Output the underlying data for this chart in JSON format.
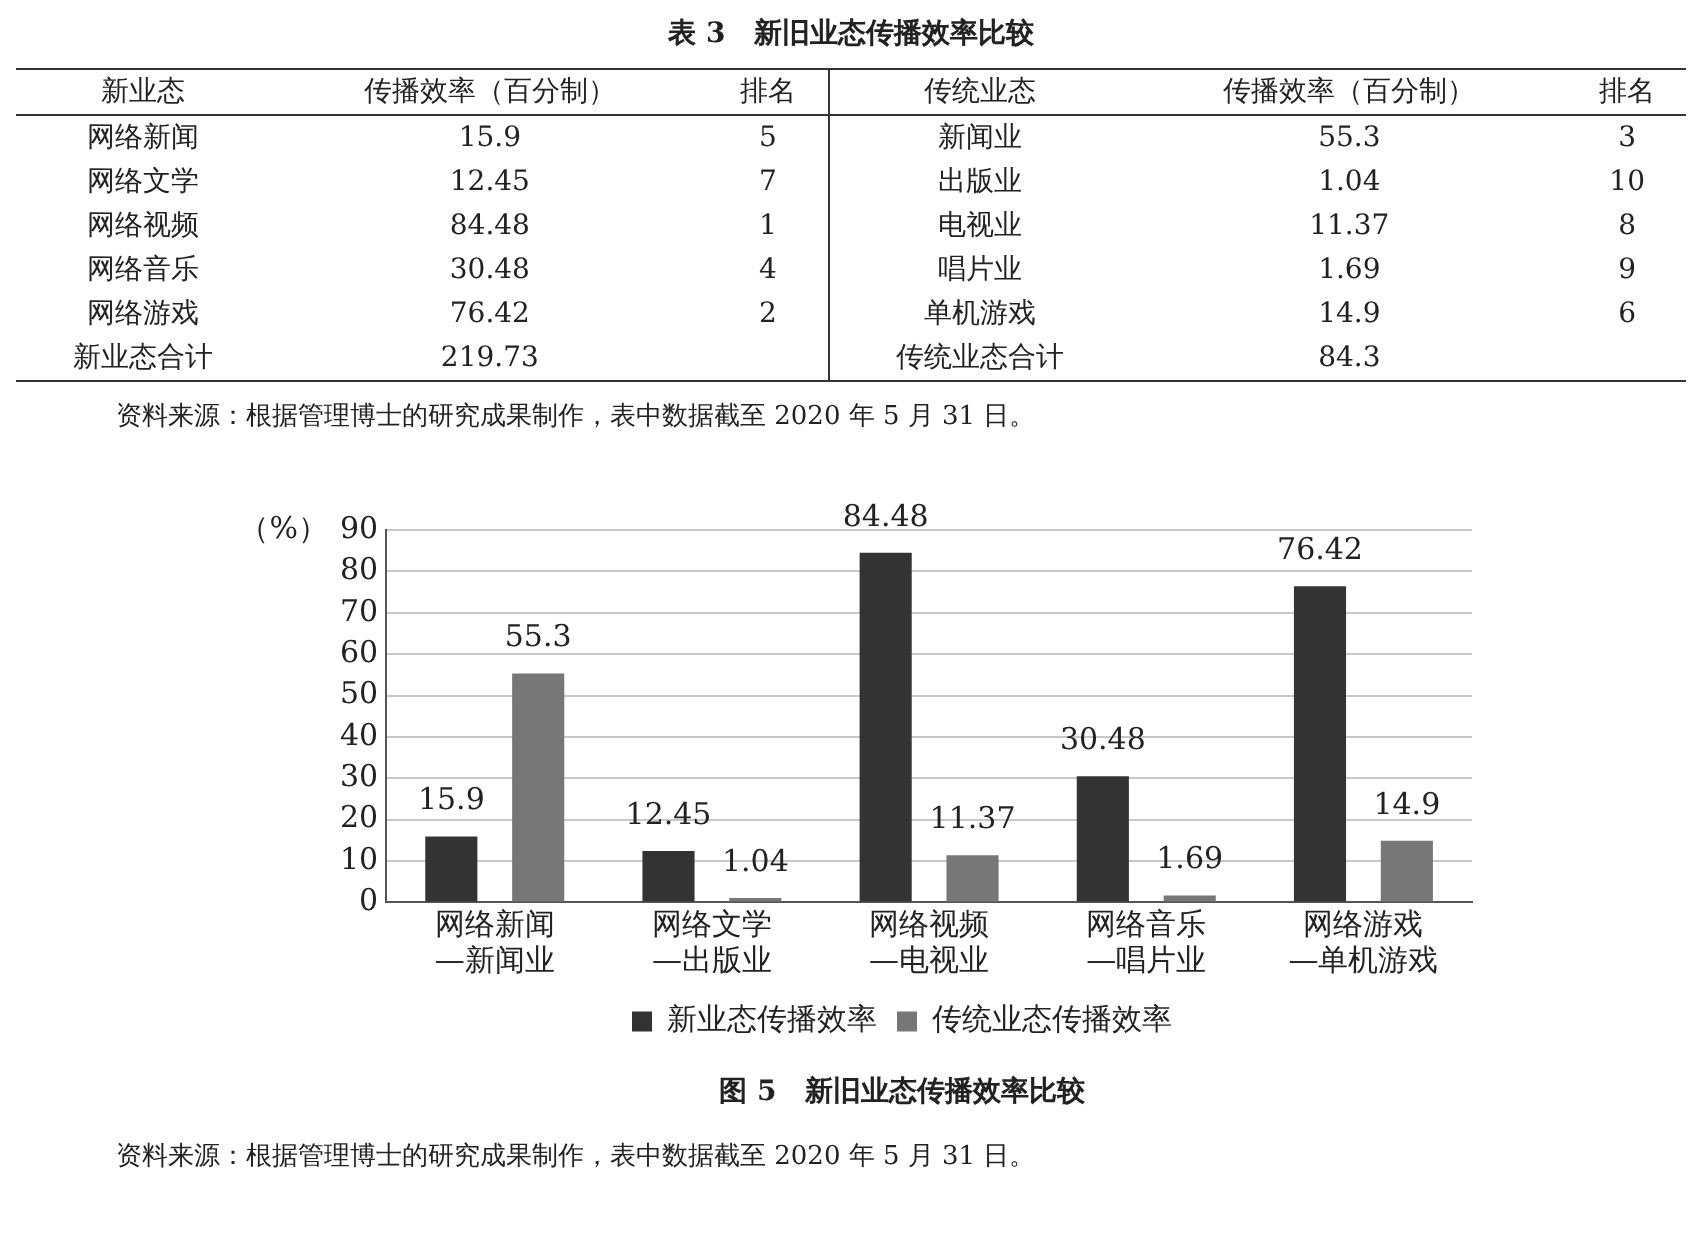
{
  "chart_data": [
    {
      "type": "other",
      "title": "表 3　新旧业态传播效率比较",
      "annotations": [
        "新业态",
        "传播效率（百分制）",
        "排名",
        "传统业态",
        "传播效率（百分制）",
        "排名",
        "网络新闻",
        "15.9",
        "5",
        "新闻业",
        "55.3",
        "3",
        "网络文学",
        "12.45",
        "7",
        "出版业",
        "1.04",
        "10",
        "网络视频",
        "84.48",
        "1",
        "电视业",
        "11.37",
        "8",
        "网络音乐",
        "30.48",
        "4",
        "唱片业",
        "1.69",
        "9",
        "网络游戏",
        "76.42",
        "2",
        "单机游戏",
        "14.9",
        "6",
        "新业态合计",
        "219.73",
        null,
        "传统业态合计",
        "84.3",
        null,
        "资料来源：根据管理博士的研究成果制作，表中数据截至 2020 年 5 月 31 日。"
      ]
    },
    {
      "type": "bar",
      "title": "图 5　新旧业态传播效率比较",
      "ylabel": "（%）",
      "categories": [
        "网络新闻\n—新闻业",
        "网络文学\n—出版业",
        "网络视频\n—电视业",
        "网络音乐\n—唱片业",
        "网络游戏\n—单机游戏"
      ],
      "series": [
        {
          "name": "新业态传播效率",
          "color": "#333333",
          "values": [
            15.9,
            12.45,
            84.48,
            30.48,
            76.42
          ]
        },
        {
          "name": "传统业态传播效率",
          "color": "#777777",
          "values": [
            55.3,
            1.04,
            11.37,
            1.69,
            14.9
          ]
        }
      ],
      "ylim": [
        0,
        90
      ],
      "yticks": [
        0,
        10,
        20,
        30,
        40,
        50,
        60,
        70,
        80,
        90
      ],
      "grid": "y",
      "legend": "bottom",
      "data_labels": true,
      "annotations": [
        "资料来源：根据管理博士的研究成果制作，表中数据截至 2020 年 5 月 31 日。"
      ]
    }
  ]
}
